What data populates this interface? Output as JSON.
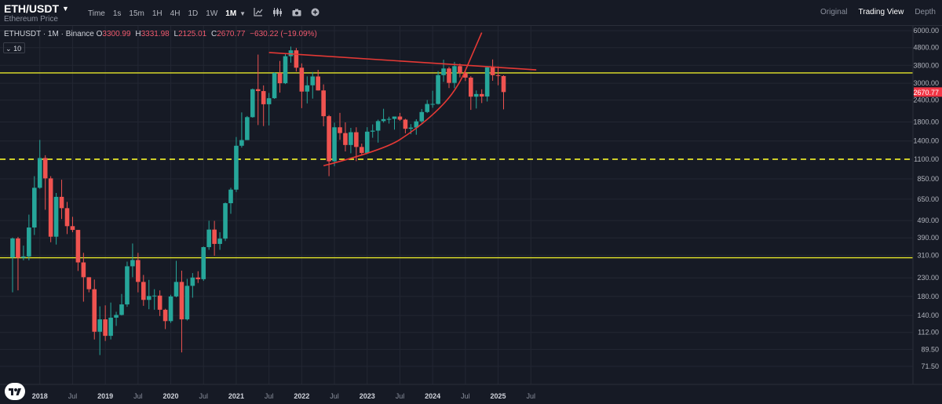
{
  "toolbar": {
    "symbol": "ETH/USDT",
    "symbol_subtitle": "Ethereum Price",
    "timeframes": [
      "Time",
      "1s",
      "15m",
      "1H",
      "4H",
      "1D",
      "1W"
    ],
    "active_timeframe": "1M",
    "icons": [
      "indicators-icon",
      "chart-type-icon",
      "screenshot-icon",
      "add-icon"
    ],
    "views": [
      "Original",
      "Trading View",
      "Depth"
    ],
    "active_view": "Trading View"
  },
  "legend": {
    "title": "ETHUSDT · 1M · Binance",
    "open_label": "O",
    "open": "3300.99",
    "high_label": "H",
    "high": "3331.98",
    "low_label": "L",
    "low": "2125.01",
    "close_label": "C",
    "close": "2670.77",
    "change": "−630.22 (−19.09%)",
    "volume_toggle": "10"
  },
  "colors": {
    "background": "#161a25",
    "up": "#26a69a",
    "down": "#ef5350",
    "support_line": "#e6e629",
    "trend_line": "#e53935",
    "price_badge": "#f23645"
  },
  "chart_data": {
    "type": "candlestick",
    "symbol": "ETHUSDT",
    "interval": "1M",
    "exchange": "Binance",
    "scale": "log",
    "ylim": [
      60,
      6200
    ],
    "y_ticks": [
      6000,
      4800,
      3800,
      3000,
      2400,
      1800,
      1400,
      1100,
      850,
      650,
      490,
      390,
      310,
      230,
      180,
      140,
      112,
      89.5,
      71.5
    ],
    "y_tick_labels": [
      "6000.00",
      "4800.00",
      "3800.00",
      "3000.00",
      "2400.00",
      "1800.00",
      "1400.00",
      "1100.00",
      "850.00",
      "650.00",
      "490.00",
      "390.00",
      "310.00",
      "230.00",
      "180.00",
      "140.00",
      "112.00",
      "89.50",
      "71.50"
    ],
    "x_tick_labels": [
      "2018",
      "Jul",
      "2019",
      "Jul",
      "2020",
      "Jul",
      "2021",
      "Jul",
      "2022",
      "Jul",
      "2023",
      "Jul",
      "2024",
      "Jul",
      "2025",
      "Jul"
    ],
    "x_tick_months": [
      "2018-01",
      "2018-07",
      "2019-01",
      "2019-07",
      "2020-01",
      "2020-07",
      "2021-01",
      "2021-07",
      "2022-01",
      "2022-07",
      "2023-01",
      "2023-07",
      "2024-01",
      "2024-07",
      "2025-01",
      "2025-07"
    ],
    "x_range": [
      "2017-08",
      "2025-09"
    ],
    "candles": [
      {
        "month": "2017-08",
        "o": 301,
        "h": 392,
        "l": 190,
        "c": 387
      },
      {
        "month": "2017-09",
        "o": 387,
        "h": 395,
        "l": 195,
        "c": 300
      },
      {
        "month": "2017-10",
        "o": 300,
        "h": 352,
        "l": 290,
        "c": 305
      },
      {
        "month": "2017-11",
        "o": 305,
        "h": 530,
        "l": 290,
        "c": 447
      },
      {
        "month": "2017-12",
        "o": 447,
        "h": 880,
        "l": 405,
        "c": 755
      },
      {
        "month": "2018-01",
        "o": 755,
        "h": 1420,
        "l": 745,
        "c": 1118
      },
      {
        "month": "2018-02",
        "o": 1118,
        "h": 1160,
        "l": 565,
        "c": 855
      },
      {
        "month": "2018-03",
        "o": 855,
        "h": 880,
        "l": 368,
        "c": 396
      },
      {
        "month": "2018-04",
        "o": 396,
        "h": 705,
        "l": 357,
        "c": 670
      },
      {
        "month": "2018-05",
        "o": 670,
        "h": 840,
        "l": 500,
        "c": 577
      },
      {
        "month": "2018-06",
        "o": 577,
        "h": 627,
        "l": 410,
        "c": 455
      },
      {
        "month": "2018-07",
        "o": 455,
        "h": 515,
        "l": 420,
        "c": 433
      },
      {
        "month": "2018-08",
        "o": 433,
        "h": 433,
        "l": 252,
        "c": 282
      },
      {
        "month": "2018-09",
        "o": 282,
        "h": 320,
        "l": 168,
        "c": 232
      },
      {
        "month": "2018-10",
        "o": 232,
        "h": 232,
        "l": 190,
        "c": 198
      },
      {
        "month": "2018-11",
        "o": 198,
        "h": 225,
        "l": 102,
        "c": 113
      },
      {
        "month": "2018-12",
        "o": 113,
        "h": 158,
        "l": 83,
        "c": 133
      },
      {
        "month": "2019-01",
        "o": 133,
        "h": 160,
        "l": 100,
        "c": 107
      },
      {
        "month": "2019-02",
        "o": 107,
        "h": 166,
        "l": 102,
        "c": 136
      },
      {
        "month": "2019-03",
        "o": 136,
        "h": 147,
        "l": 122,
        "c": 141
      },
      {
        "month": "2019-04",
        "o": 141,
        "h": 186,
        "l": 140,
        "c": 162
      },
      {
        "month": "2019-05",
        "o": 162,
        "h": 285,
        "l": 157,
        "c": 268
      },
      {
        "month": "2019-06",
        "o": 268,
        "h": 362,
        "l": 232,
        "c": 291
      },
      {
        "month": "2019-07",
        "o": 291,
        "h": 320,
        "l": 190,
        "c": 218
      },
      {
        "month": "2019-08",
        "o": 218,
        "h": 239,
        "l": 159,
        "c": 172
      },
      {
        "month": "2019-09",
        "o": 172,
        "h": 224,
        "l": 152,
        "c": 181
      },
      {
        "month": "2019-10",
        "o": 181,
        "h": 198,
        "l": 151,
        "c": 182
      },
      {
        "month": "2019-11",
        "o": 182,
        "h": 195,
        "l": 139,
        "c": 151
      },
      {
        "month": "2019-12",
        "o": 151,
        "h": 153,
        "l": 117,
        "c": 130
      },
      {
        "month": "2020-01",
        "o": 130,
        "h": 184,
        "l": 127,
        "c": 180
      },
      {
        "month": "2020-02",
        "o": 180,
        "h": 288,
        "l": 178,
        "c": 218
      },
      {
        "month": "2020-03",
        "o": 218,
        "h": 253,
        "l": 86,
        "c": 133
      },
      {
        "month": "2020-04",
        "o": 133,
        "h": 227,
        "l": 131,
        "c": 207
      },
      {
        "month": "2020-05",
        "o": 207,
        "h": 245,
        "l": 177,
        "c": 231
      },
      {
        "month": "2020-06",
        "o": 231,
        "h": 251,
        "l": 215,
        "c": 226
      },
      {
        "month": "2020-07",
        "o": 226,
        "h": 348,
        "l": 221,
        "c": 345
      },
      {
        "month": "2020-08",
        "o": 345,
        "h": 489,
        "l": 333,
        "c": 435
      },
      {
        "month": "2020-09",
        "o": 435,
        "h": 488,
        "l": 308,
        "c": 360
      },
      {
        "month": "2020-10",
        "o": 360,
        "h": 420,
        "l": 333,
        "c": 386
      },
      {
        "month": "2020-11",
        "o": 386,
        "h": 622,
        "l": 374,
        "c": 616
      },
      {
        "month": "2020-12",
        "o": 616,
        "h": 755,
        "l": 536,
        "c": 737
      },
      {
        "month": "2021-01",
        "o": 737,
        "h": 1476,
        "l": 714,
        "c": 1315
      },
      {
        "month": "2021-02",
        "o": 1315,
        "h": 2042,
        "l": 1283,
        "c": 1417
      },
      {
        "month": "2021-03",
        "o": 1417,
        "h": 1947,
        "l": 1454,
        "c": 1918
      },
      {
        "month": "2021-04",
        "o": 1918,
        "h": 2798,
        "l": 1905,
        "c": 2773
      },
      {
        "month": "2021-05",
        "o": 2773,
        "h": 4380,
        "l": 1728,
        "c": 2706
      },
      {
        "month": "2021-06",
        "o": 2706,
        "h": 2916,
        "l": 1705,
        "c": 2274
      },
      {
        "month": "2021-07",
        "o": 2274,
        "h": 2640,
        "l": 1719,
        "c": 2462
      },
      {
        "month": "2021-08",
        "o": 2462,
        "h": 3469,
        "l": 2441,
        "c": 3433
      },
      {
        "month": "2021-09",
        "o": 3433,
        "h": 4027,
        "l": 2651,
        "c": 3000
      },
      {
        "month": "2021-10",
        "o": 3000,
        "h": 4460,
        "l": 2970,
        "c": 4287
      },
      {
        "month": "2021-11",
        "o": 4287,
        "h": 4868,
        "l": 3934,
        "c": 4631
      },
      {
        "month": "2021-12",
        "o": 4631,
        "h": 4778,
        "l": 3500,
        "c": 3683
      },
      {
        "month": "2022-01",
        "o": 3683,
        "h": 3900,
        "l": 2160,
        "c": 2688
      },
      {
        "month": "2022-02",
        "o": 2688,
        "h": 3285,
        "l": 2300,
        "c": 2920
      },
      {
        "month": "2022-03",
        "o": 2920,
        "h": 3480,
        "l": 2450,
        "c": 3281
      },
      {
        "month": "2022-04",
        "o": 3281,
        "h": 3580,
        "l": 2723,
        "c": 2729
      },
      {
        "month": "2022-05",
        "o": 2729,
        "h": 2955,
        "l": 1700,
        "c": 1942
      },
      {
        "month": "2022-06",
        "o": 1942,
        "h": 1973,
        "l": 880,
        "c": 1071
      },
      {
        "month": "2022-07",
        "o": 1071,
        "h": 1784,
        "l": 1005,
        "c": 1678
      },
      {
        "month": "2022-08",
        "o": 1678,
        "h": 2030,
        "l": 1422,
        "c": 1554
      },
      {
        "month": "2022-09",
        "o": 1554,
        "h": 1790,
        "l": 1220,
        "c": 1328
      },
      {
        "month": "2022-10",
        "o": 1328,
        "h": 1665,
        "l": 1190,
        "c": 1572
      },
      {
        "month": "2022-11",
        "o": 1572,
        "h": 1678,
        "l": 1073,
        "c": 1294
      },
      {
        "month": "2022-12",
        "o": 1294,
        "h": 1353,
        "l": 1155,
        "c": 1196
      },
      {
        "month": "2023-01",
        "o": 1196,
        "h": 1680,
        "l": 1190,
        "c": 1584
      },
      {
        "month": "2023-02",
        "o": 1584,
        "h": 1743,
        "l": 1461,
        "c": 1605
      },
      {
        "month": "2023-03",
        "o": 1605,
        "h": 1857,
        "l": 1370,
        "c": 1821
      },
      {
        "month": "2023-04",
        "o": 1821,
        "h": 2142,
        "l": 1785,
        "c": 1869
      },
      {
        "month": "2023-05",
        "o": 1869,
        "h": 1929,
        "l": 1762,
        "c": 1874
      },
      {
        "month": "2023-06",
        "o": 1874,
        "h": 1930,
        "l": 1626,
        "c": 1934
      },
      {
        "month": "2023-07",
        "o": 1934,
        "h": 2029,
        "l": 1826,
        "c": 1856
      },
      {
        "month": "2023-08",
        "o": 1856,
        "h": 1877,
        "l": 1550,
        "c": 1645
      },
      {
        "month": "2023-09",
        "o": 1645,
        "h": 1750,
        "l": 1531,
        "c": 1671
      },
      {
        "month": "2023-10",
        "o": 1671,
        "h": 1866,
        "l": 1521,
        "c": 1815
      },
      {
        "month": "2023-11",
        "o": 1815,
        "h": 2136,
        "l": 1777,
        "c": 2052
      },
      {
        "month": "2023-12",
        "o": 2052,
        "h": 2405,
        "l": 2025,
        "c": 2282
      },
      {
        "month": "2024-01",
        "o": 2282,
        "h": 2718,
        "l": 2170,
        "c": 2283
      },
      {
        "month": "2024-02",
        "o": 2283,
        "h": 3522,
        "l": 2265,
        "c": 3340
      },
      {
        "month": "2024-03",
        "o": 3340,
        "h": 4093,
        "l": 3056,
        "c": 3646
      },
      {
        "month": "2024-04",
        "o": 3646,
        "h": 3730,
        "l": 2817,
        "c": 3014
      },
      {
        "month": "2024-05",
        "o": 3014,
        "h": 3977,
        "l": 2810,
        "c": 3760
      },
      {
        "month": "2024-06",
        "o": 3760,
        "h": 3887,
        "l": 3240,
        "c": 3433
      },
      {
        "month": "2024-07",
        "o": 3433,
        "h": 3563,
        "l": 3090,
        "c": 3232
      },
      {
        "month": "2024-08",
        "o": 3232,
        "h": 3294,
        "l": 2111,
        "c": 2513
      },
      {
        "month": "2024-09",
        "o": 2513,
        "h": 2728,
        "l": 2150,
        "c": 2603
      },
      {
        "month": "2024-10",
        "o": 2603,
        "h": 2770,
        "l": 2310,
        "c": 2518
      },
      {
        "month": "2024-11",
        "o": 2518,
        "h": 3720,
        "l": 2357,
        "c": 3700
      },
      {
        "month": "2024-12",
        "o": 3700,
        "h": 4107,
        "l": 3100,
        "c": 3337
      },
      {
        "month": "2025-01",
        "o": 3337,
        "h": 3745,
        "l": 2920,
        "c": 3300
      },
      {
        "month": "2025-02",
        "o": 3300,
        "h": 3332,
        "l": 2125,
        "c": 2671
      }
    ],
    "current_price": 2670.77,
    "current_price_label": "2670.77",
    "horizontal_lines": [
      {
        "price": 3440,
        "style": "solid",
        "color": "#e6e629"
      },
      {
        "price": 1100,
        "style": "dashed",
        "color": "#e6e629"
      },
      {
        "price": 300,
        "style": "solid",
        "color": "#e6e629"
      }
    ],
    "trend_lines": [
      {
        "from": {
          "month": "2021-07",
          "price": 4500
        },
        "to": {
          "month": "2025-08",
          "price": 3580
        },
        "color": "#e53935"
      },
      {
        "type": "curve",
        "points": [
          {
            "month": "2022-05",
            "price": 1010
          },
          {
            "month": "2023-04",
            "price": 1240
          },
          {
            "month": "2023-10",
            "price": 1640
          },
          {
            "month": "2024-03",
            "price": 2250
          },
          {
            "month": "2024-06",
            "price": 3000
          },
          {
            "month": "2024-08",
            "price": 4200
          },
          {
            "month": "2024-10",
            "price": 5850
          }
        ],
        "color": "#e53935"
      }
    ]
  }
}
